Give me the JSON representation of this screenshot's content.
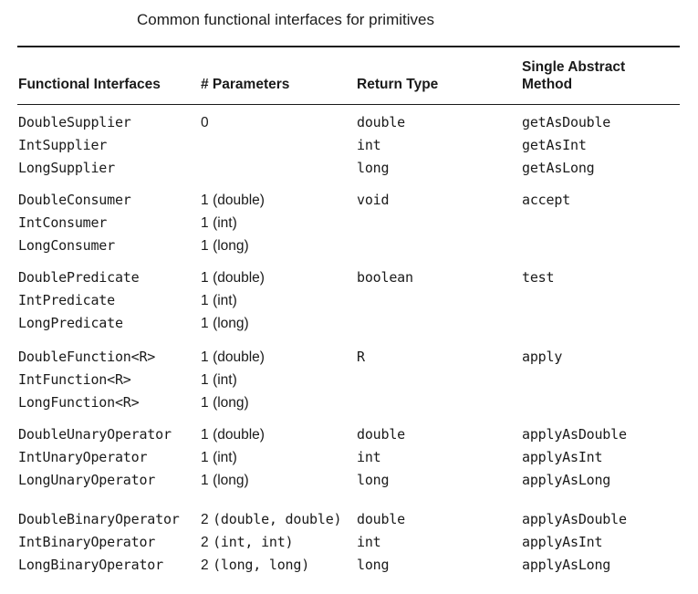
{
  "caption": "Common functional interfaces for primitives",
  "headers": {
    "interface": "Functional Interfaces",
    "params": "# Parameters",
    "return_type": "Return Type",
    "method": "Single Abstract\nMethod"
  },
  "groups": [
    {
      "rows": [
        {
          "name": "DoubleSupplier",
          "param_num": "0",
          "param_type": "",
          "param_mono": false,
          "ret": "double",
          "method": "getAsDouble"
        },
        {
          "name": "IntSupplier",
          "param_num": "",
          "param_type": "",
          "param_mono": false,
          "ret": "int",
          "method": "getAsInt"
        },
        {
          "name": "LongSupplier",
          "param_num": "",
          "param_type": "",
          "param_mono": false,
          "ret": "long",
          "method": "getAsLong"
        }
      ]
    },
    {
      "rows": [
        {
          "name": "DoubleConsumer",
          "param_num": "1",
          "param_type": "(double)",
          "param_mono": false,
          "ret": "void",
          "method": "accept"
        },
        {
          "name": "IntConsumer",
          "param_num": "1",
          "param_type": "(int)",
          "param_mono": false,
          "ret": "",
          "method": ""
        },
        {
          "name": "LongConsumer",
          "param_num": "1",
          "param_type": "(long)",
          "param_mono": false,
          "ret": "",
          "method": ""
        }
      ]
    },
    {
      "rows": [
        {
          "name": "DoublePredicate",
          "param_num": "1",
          "param_type": "(double)",
          "param_mono": false,
          "ret": "boolean",
          "method": "test"
        },
        {
          "name": "IntPredicate",
          "param_num": "1",
          "param_type": "(int)",
          "param_mono": false,
          "ret": "",
          "method": ""
        },
        {
          "name": "LongPredicate",
          "param_num": "1",
          "param_type": "(long)",
          "param_mono": false,
          "ret": "",
          "method": ""
        }
      ]
    },
    {
      "rows": [
        {
          "name": "DoubleFunction<R>",
          "param_num": "1",
          "param_type": "(double)",
          "param_mono": false,
          "ret": "R",
          "method": "apply"
        },
        {
          "name": "IntFunction<R>",
          "param_num": "1",
          "param_type": "(int)",
          "param_mono": false,
          "ret": "",
          "method": ""
        },
        {
          "name": "LongFunction<R>",
          "param_num": "1",
          "param_type": "(long)",
          "param_mono": false,
          "ret": "",
          "method": ""
        }
      ]
    },
    {
      "rows": [
        {
          "name": "DoubleUnaryOperator",
          "param_num": "1",
          "param_type": "(double)",
          "param_mono": false,
          "ret": "double",
          "method": "applyAsDouble"
        },
        {
          "name": "IntUnaryOperator",
          "param_num": "1",
          "param_type": "(int)",
          "param_mono": false,
          "ret": "int",
          "method": "applyAsInt"
        },
        {
          "name": "LongUnaryOperator",
          "param_num": "1",
          "param_type": "(long)",
          "param_mono": false,
          "ret": "long",
          "method": "applyAsLong"
        }
      ]
    },
    {
      "rows": [
        {
          "name": "DoubleBinaryOperator",
          "param_num": "2",
          "param_type": "(double, double)",
          "param_mono": true,
          "ret": "double",
          "method": "applyAsDouble"
        },
        {
          "name": "IntBinaryOperator",
          "param_num": "2",
          "param_type": "(int, int)",
          "param_mono": true,
          "ret": "int",
          "method": "applyAsInt"
        },
        {
          "name": "LongBinaryOperator",
          "param_num": "2",
          "param_type": "(long, long)",
          "param_mono": true,
          "ret": "long",
          "method": "applyAsLong"
        }
      ]
    }
  ]
}
